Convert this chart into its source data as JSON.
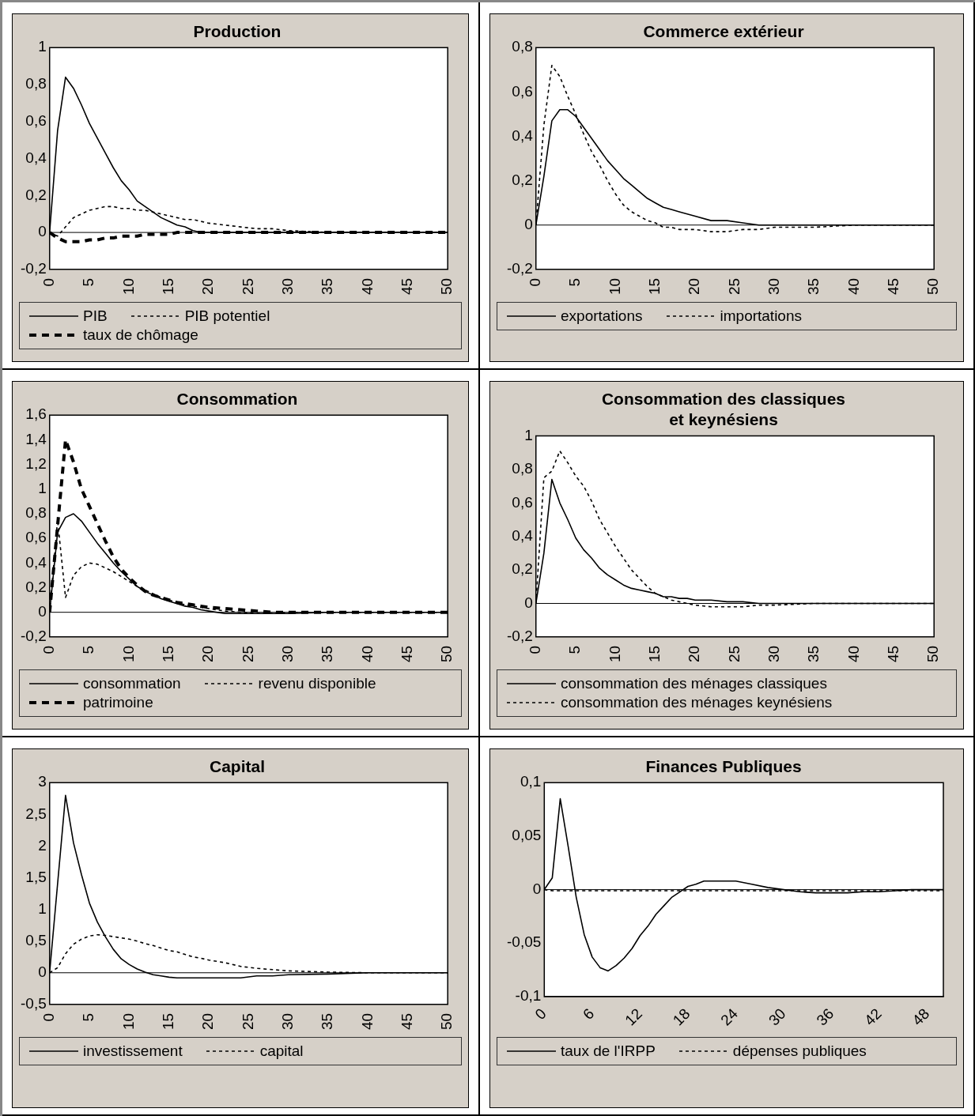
{
  "chart_data": [
    {
      "type": "line",
      "title": "Production",
      "x": [
        0,
        1,
        2,
        3,
        4,
        5,
        6,
        7,
        8,
        9,
        10,
        11,
        12,
        13,
        14,
        15,
        16,
        17,
        18,
        19,
        20,
        22,
        24,
        26,
        28,
        30,
        35,
        40,
        45,
        50
      ],
      "xlim": [
        0,
        50
      ],
      "xticks": [
        0,
        5,
        10,
        15,
        20,
        25,
        30,
        35,
        40,
        45,
        50
      ],
      "ylim": [
        -0.2,
        1
      ],
      "yticks": [
        {
          "value": -0.2,
          "label": "-0,2"
        },
        0,
        {
          "value": 0.2,
          "label": "0,2"
        },
        {
          "value": 0.4,
          "label": "0,4"
        },
        {
          "value": 0.6,
          "label": "0,6"
        },
        {
          "value": 0.8,
          "label": "0,8"
        },
        1
      ],
      "ref_lines": [
        {
          "axis": "y",
          "value": 0,
          "color": "#000000"
        }
      ],
      "legend": "bottom",
      "series": [
        {
          "name": "PIB",
          "color": "#000000",
          "line_style": "solid",
          "values": [
            0,
            0.55,
            0.84,
            0.78,
            0.69,
            0.59,
            0.51,
            0.43,
            0.35,
            0.28,
            0.23,
            0.17,
            0.14,
            0.11,
            0.08,
            0.06,
            0.04,
            0.03,
            0.01,
            0,
            0,
            0,
            0,
            0,
            0,
            0,
            0,
            0,
            0,
            0
          ]
        },
        {
          "name": "PIB potentiel",
          "color": "#000000",
          "line_style": "dotted",
          "values": [
            0,
            -0.02,
            0.03,
            0.08,
            0.1,
            0.12,
            0.13,
            0.14,
            0.14,
            0.13,
            0.13,
            0.12,
            0.12,
            0.11,
            0.1,
            0.09,
            0.08,
            0.07,
            0.07,
            0.06,
            0.05,
            0.04,
            0.03,
            0.02,
            0.02,
            0.01,
            0,
            0,
            0,
            0
          ]
        },
        {
          "name": "taux de chômage",
          "color": "#000000",
          "line_style": "dashed",
          "values": [
            0,
            -0.03,
            -0.05,
            -0.05,
            -0.05,
            -0.04,
            -0.04,
            -0.03,
            -0.03,
            -0.02,
            -0.02,
            -0.02,
            -0.01,
            -0.01,
            -0.01,
            -0.01,
            0,
            0,
            0,
            0,
            0,
            0,
            0,
            0,
            0,
            0,
            0,
            0,
            0,
            0
          ]
        }
      ]
    },
    {
      "type": "line",
      "title": "Commerce extérieur",
      "x": [
        0,
        1,
        2,
        3,
        4,
        5,
        6,
        7,
        8,
        9,
        10,
        11,
        12,
        13,
        14,
        15,
        16,
        17,
        18,
        19,
        20,
        22,
        24,
        26,
        28,
        30,
        35,
        40,
        45,
        50
      ],
      "xlim": [
        0,
        50
      ],
      "xticks": [
        0,
        5,
        10,
        15,
        20,
        25,
        30,
        35,
        40,
        45,
        50
      ],
      "ylim": [
        -0.2,
        0.8
      ],
      "yticks": [
        {
          "value": -0.2,
          "label": "-0,2"
        },
        0,
        {
          "value": 0.2,
          "label": "0,2"
        },
        {
          "value": 0.4,
          "label": "0,4"
        },
        {
          "value": 0.6,
          "label": "0,6"
        },
        {
          "value": 0.8,
          "label": "0,8"
        }
      ],
      "ref_lines": [
        {
          "axis": "y",
          "value": 0,
          "color": "#000000"
        }
      ],
      "legend": "bottom",
      "series": [
        {
          "name": "exportations",
          "color": "#000000",
          "line_style": "solid",
          "values": [
            0,
            0.22,
            0.47,
            0.52,
            0.52,
            0.49,
            0.44,
            0.39,
            0.34,
            0.29,
            0.25,
            0.21,
            0.18,
            0.15,
            0.12,
            0.1,
            0.08,
            0.07,
            0.06,
            0.05,
            0.04,
            0.02,
            0.02,
            0.01,
            0,
            0,
            0,
            0,
            0,
            0
          ]
        },
        {
          "name": "importations",
          "color": "#000000",
          "line_style": "dotted",
          "values": [
            0,
            0.45,
            0.72,
            0.67,
            0.58,
            0.5,
            0.41,
            0.33,
            0.27,
            0.2,
            0.14,
            0.09,
            0.06,
            0.04,
            0.02,
            0.01,
            -0.01,
            -0.01,
            -0.02,
            -0.02,
            -0.02,
            -0.03,
            -0.03,
            -0.02,
            -0.02,
            -0.01,
            -0.01,
            0,
            0,
            0
          ]
        }
      ]
    },
    {
      "type": "line",
      "title": "Consommation",
      "x": [
        0,
        1,
        2,
        3,
        4,
        5,
        6,
        7,
        8,
        9,
        10,
        11,
        12,
        13,
        14,
        15,
        16,
        17,
        18,
        19,
        20,
        22,
        24,
        26,
        28,
        30,
        35,
        40,
        45,
        50
      ],
      "xlim": [
        0,
        50
      ],
      "xticks": [
        0,
        5,
        10,
        15,
        20,
        25,
        30,
        35,
        40,
        45,
        50
      ],
      "ylim": [
        -0.2,
        1.6
      ],
      "yticks": [
        {
          "value": -0.2,
          "label": "-0,2"
        },
        0,
        {
          "value": 0.2,
          "label": "0,2"
        },
        {
          "value": 0.4,
          "label": "0,4"
        },
        {
          "value": 0.6,
          "label": "0,6"
        },
        {
          "value": 0.8,
          "label": "0,8"
        },
        1,
        {
          "value": 1.2,
          "label": "1,2"
        },
        {
          "value": 1.4,
          "label": "1,4"
        },
        {
          "value": 1.6,
          "label": "1,6"
        }
      ],
      "ref_lines": [
        {
          "axis": "y",
          "value": 0,
          "color": "#000000"
        }
      ],
      "legend": "bottom",
      "series": [
        {
          "name": "consommation",
          "color": "#000000",
          "line_style": "solid",
          "values": [
            0,
            0.65,
            0.77,
            0.8,
            0.74,
            0.65,
            0.56,
            0.48,
            0.4,
            0.33,
            0.27,
            0.21,
            0.17,
            0.14,
            0.11,
            0.09,
            0.07,
            0.05,
            0.04,
            0.02,
            0.01,
            -0.01,
            -0.01,
            -0.01,
            -0.01,
            -0.01,
            0,
            0,
            0,
            0
          ]
        },
        {
          "name": "revenu disponible",
          "color": "#000000",
          "line_style": "dotted",
          "values": [
            0,
            0.75,
            0.12,
            0.3,
            0.37,
            0.4,
            0.39,
            0.36,
            0.33,
            0.29,
            0.25,
            0.21,
            0.18,
            0.15,
            0.12,
            0.1,
            0.08,
            0.06,
            0.05,
            0.04,
            0.03,
            0.01,
            0,
            -0.01,
            -0.01,
            0,
            0,
            0,
            0,
            0
          ]
        },
        {
          "name": "patrimoine",
          "color": "#000000",
          "line_style": "dashed",
          "values": [
            0,
            0.7,
            1.4,
            1.22,
            1.0,
            0.86,
            0.72,
            0.58,
            0.45,
            0.35,
            0.28,
            0.22,
            0.17,
            0.14,
            0.12,
            0.1,
            0.08,
            0.07,
            0.06,
            0.05,
            0.04,
            0.03,
            0.02,
            0.01,
            0,
            0,
            0,
            0,
            0,
            0
          ]
        }
      ]
    },
    {
      "type": "line",
      "title": "Consommation des classiques et keynésiens",
      "x": [
        0,
        1,
        2,
        3,
        4,
        5,
        6,
        7,
        8,
        9,
        10,
        11,
        12,
        13,
        14,
        15,
        16,
        17,
        18,
        19,
        20,
        22,
        24,
        26,
        28,
        30,
        35,
        40,
        45,
        50
      ],
      "xlim": [
        0,
        50
      ],
      "xticks": [
        0,
        5,
        10,
        15,
        20,
        25,
        30,
        35,
        40,
        45,
        50
      ],
      "ylim": [
        -0.2,
        1
      ],
      "yticks": [
        {
          "value": -0.2,
          "label": "-0,2"
        },
        0,
        {
          "value": 0.2,
          "label": "0,2"
        },
        {
          "value": 0.4,
          "label": "0,4"
        },
        {
          "value": 0.6,
          "label": "0,6"
        },
        {
          "value": 0.8,
          "label": "0,8"
        },
        1
      ],
      "ref_lines": [
        {
          "axis": "y",
          "value": 0,
          "color": "#000000"
        }
      ],
      "legend": "bottom",
      "series": [
        {
          "name": "consommation des ménages classiques",
          "color": "#000000",
          "line_style": "solid",
          "values": [
            0,
            0.3,
            0.74,
            0.6,
            0.5,
            0.39,
            0.32,
            0.27,
            0.21,
            0.17,
            0.14,
            0.11,
            0.09,
            0.08,
            0.07,
            0.06,
            0.04,
            0.04,
            0.03,
            0.03,
            0.02,
            0.02,
            0.01,
            0.01,
            0,
            0,
            0,
            0,
            0,
            0
          ]
        },
        {
          "name": "consommation des ménages keynésiens",
          "color": "#000000",
          "line_style": "dotted",
          "values": [
            0,
            0.75,
            0.79,
            0.91,
            0.84,
            0.76,
            0.7,
            0.61,
            0.5,
            0.42,
            0.34,
            0.27,
            0.2,
            0.15,
            0.1,
            0.06,
            0.04,
            0.02,
            0.01,
            0,
            -0.01,
            -0.02,
            -0.02,
            -0.02,
            -0.01,
            -0.01,
            0,
            0,
            0,
            0
          ]
        }
      ]
    },
    {
      "type": "line",
      "title": "Capital",
      "x": [
        0,
        1,
        2,
        3,
        4,
        5,
        6,
        7,
        8,
        9,
        10,
        11,
        12,
        13,
        14,
        15,
        16,
        17,
        18,
        19,
        20,
        22,
        24,
        26,
        28,
        30,
        35,
        40,
        45,
        50
      ],
      "xlim": [
        0,
        50
      ],
      "xticks": [
        0,
        5,
        10,
        15,
        20,
        25,
        30,
        35,
        40,
        45,
        50
      ],
      "ylim": [
        -0.5,
        3
      ],
      "yticks": [
        {
          "value": -0.5,
          "label": "-0,5"
        },
        0,
        {
          "value": 0.5,
          "label": "0,5"
        },
        1,
        {
          "value": 1.5,
          "label": "1,5"
        },
        2,
        {
          "value": 2.5,
          "label": "2,5"
        },
        3
      ],
      "ref_lines": [
        {
          "axis": "y",
          "value": 0,
          "color": "#000000"
        }
      ],
      "legend": "bottom",
      "series": [
        {
          "name": "investissement",
          "color": "#000000",
          "line_style": "solid",
          "values": [
            0,
            1.4,
            2.8,
            2.05,
            1.55,
            1.1,
            0.8,
            0.57,
            0.37,
            0.22,
            0.13,
            0.06,
            0.01,
            -0.03,
            -0.05,
            -0.07,
            -0.08,
            -0.08,
            -0.08,
            -0.08,
            -0.08,
            -0.08,
            -0.08,
            -0.05,
            -0.05,
            -0.03,
            -0.02,
            0,
            0,
            0
          ]
        },
        {
          "name": "capital",
          "color": "#000000",
          "line_style": "dotted",
          "values": [
            0,
            0.08,
            0.3,
            0.45,
            0.53,
            0.58,
            0.6,
            0.59,
            0.57,
            0.55,
            0.53,
            0.5,
            0.46,
            0.43,
            0.39,
            0.35,
            0.33,
            0.29,
            0.25,
            0.23,
            0.2,
            0.16,
            0.1,
            0.07,
            0.05,
            0.03,
            0.01,
            0,
            0,
            0
          ]
        }
      ]
    },
    {
      "type": "line",
      "title": "Finances Publiques",
      "x": [
        0,
        1,
        2,
        3,
        4,
        5,
        6,
        7,
        8,
        9,
        10,
        11,
        12,
        13,
        14,
        15,
        16,
        17,
        18,
        19,
        20,
        22,
        24,
        26,
        28,
        30,
        32,
        34,
        36,
        38,
        40,
        42,
        44,
        46,
        48,
        50
      ],
      "xlim": [
        0,
        50
      ],
      "xticks": [
        0,
        6,
        12,
        18,
        24,
        30,
        36,
        42,
        48
      ],
      "ylim": [
        -0.1,
        0.1
      ],
      "yticks": [
        {
          "value": -0.1,
          "label": "-0,1"
        },
        {
          "value": -0.05,
          "label": "-0,05"
        },
        0,
        {
          "value": 0.05,
          "label": "0,05"
        },
        {
          "value": 0.1,
          "label": "0,1"
        }
      ],
      "ref_lines": [
        {
          "axis": "y",
          "value": 0,
          "color": "#000000"
        }
      ],
      "legend": "bottom",
      "series": [
        {
          "name": "taux de l'IRPP",
          "color": "#000000",
          "line_style": "solid",
          "values": [
            0,
            0.011,
            0.085,
            0.04,
            -0.007,
            -0.042,
            -0.063,
            -0.073,
            -0.076,
            -0.071,
            -0.064,
            -0.055,
            -0.043,
            -0.034,
            -0.023,
            -0.015,
            -0.007,
            -0.002,
            0.003,
            0.005,
            0.008,
            0.008,
            0.008,
            0.005,
            0.002,
            0,
            -0.002,
            -0.003,
            -0.003,
            -0.003,
            -0.002,
            -0.002,
            -0.001,
            0,
            0,
            0
          ]
        },
        {
          "name": "dépenses publiques",
          "color": "#000000",
          "line_style": "dotted",
          "values": [
            0,
            -0.001,
            -0.001,
            -0.001,
            -0.001,
            -0.001,
            -0.001,
            -0.001,
            -0.001,
            -0.001,
            -0.001,
            -0.001,
            -0.001,
            -0.001,
            -0.001,
            -0.001,
            -0.001,
            -0.001,
            -0.001,
            -0.001,
            -0.001,
            -0.001,
            -0.001,
            -0.001,
            -0.001,
            -0.001,
            -0.001,
            -0.001,
            -0.001,
            -0.001,
            -0.001,
            -0.001,
            -0.001,
            -0.001,
            -0.001,
            -0.001
          ]
        }
      ]
    }
  ]
}
